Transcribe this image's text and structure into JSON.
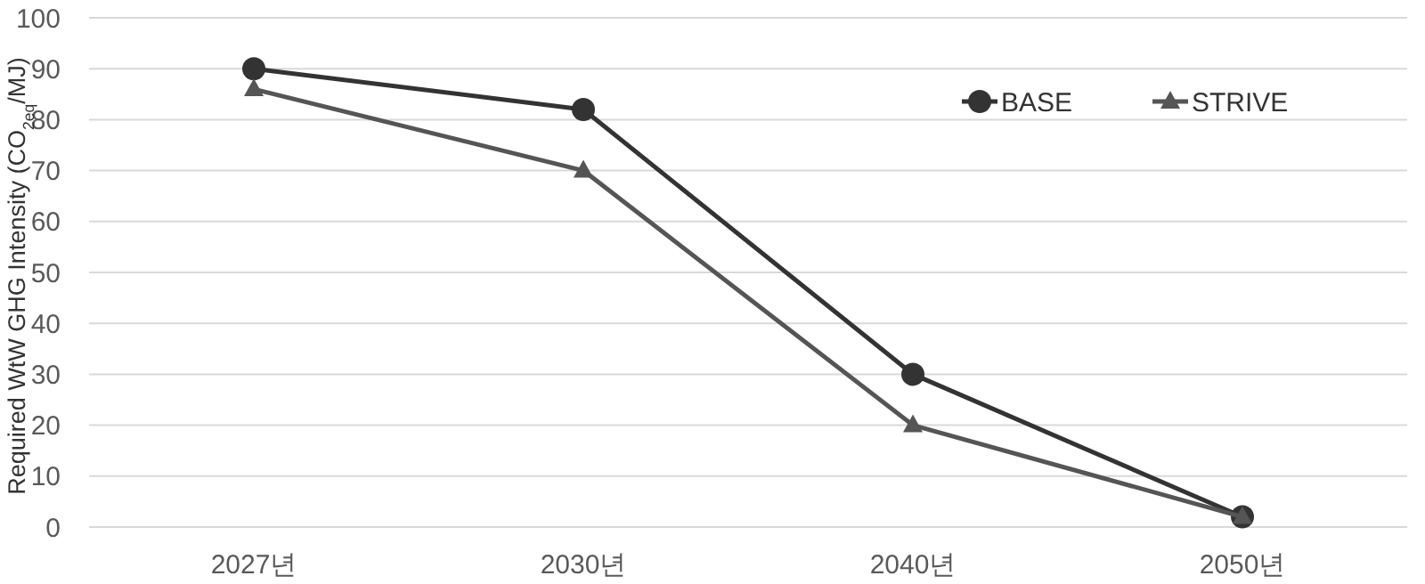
{
  "chart_data": {
    "type": "line",
    "ylabel": "Required WtW GHG Intensity (CO$_{2eq}$/MJ)",
    "categories": [
      "2027년",
      "2030년",
      "2040년",
      "2050년"
    ],
    "series": [
      {
        "name": "BASE",
        "color": "#333333",
        "marker": "circle",
        "values": [
          90,
          82,
          30,
          2
        ]
      },
      {
        "name": "STRIVE",
        "color": "#555555",
        "marker": "triangle",
        "values": [
          86,
          70,
          20,
          2
        ]
      }
    ],
    "ylim": [
      0,
      100
    ],
    "yticks": [
      0,
      10,
      20,
      30,
      40,
      50,
      60,
      70,
      80,
      90,
      100
    ],
    "grid": "y",
    "legend": "top right"
  }
}
